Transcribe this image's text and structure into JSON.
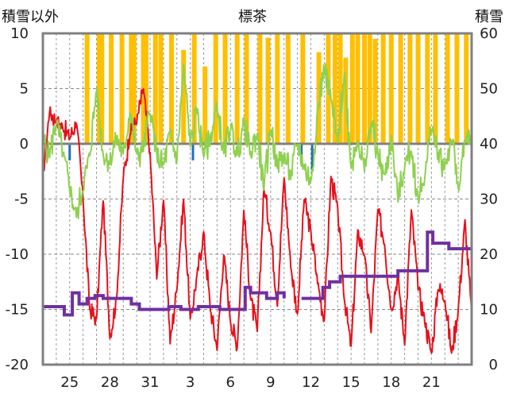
{
  "chart_data": {
    "type": "line",
    "title": "標茶",
    "left_axis_label": "積雪以外",
    "right_axis_label": "積雪",
    "ylim_left": [
      -20,
      10
    ],
    "yticks_left": [
      "10",
      "5",
      "0",
      "-5",
      "-10",
      "-15",
      "-20"
    ],
    "ylim_right": [
      0,
      60
    ],
    "yticks_right": [
      "60",
      "50",
      "40",
      "30",
      "20",
      "10",
      "0"
    ],
    "x_tick_labels": [
      "25",
      "28",
      "31",
      "3",
      "6",
      "9",
      "12",
      "15",
      "18",
      "21"
    ],
    "x_range_days": [
      23,
      55
    ],
    "grid": "horizontal dashed at 5-unit steps, vertical dashed each day",
    "colors": {
      "temperature": "#e8101a",
      "green_series": "#8fd14f",
      "precipitation": "#ffc000",
      "snow_depth": "#7030a0",
      "blue_marks": "#1f6fbf",
      "zero_line": "#808080",
      "frame": "#808080"
    },
    "precip_bars": [
      [
        26.3,
        10
      ],
      [
        27.2,
        10
      ],
      [
        27.4,
        10
      ],
      [
        28.1,
        10
      ],
      [
        28.9,
        10
      ],
      [
        29.6,
        10
      ],
      [
        29.8,
        10
      ],
      [
        30.5,
        10
      ],
      [
        30.7,
        10
      ],
      [
        31.4,
        10
      ],
      [
        31.8,
        10
      ],
      [
        32.6,
        10
      ],
      [
        33.5,
        8.5
      ],
      [
        34.3,
        10
      ],
      [
        35.1,
        7
      ],
      [
        35.9,
        10
      ],
      [
        36.6,
        10
      ],
      [
        37.5,
        10
      ],
      [
        38.2,
        10
      ],
      [
        39.2,
        10
      ],
      [
        39.8,
        9.6
      ],
      [
        40.5,
        10
      ],
      [
        41.3,
        10
      ],
      [
        42.4,
        10
      ],
      [
        43.6,
        8.3
      ],
      [
        44.3,
        10
      ],
      [
        44.8,
        10
      ],
      [
        45.2,
        10
      ],
      [
        45.6,
        7.8
      ],
      [
        46.1,
        10
      ],
      [
        46.5,
        10
      ],
      [
        47.0,
        10
      ],
      [
        47.4,
        10
      ],
      [
        47.8,
        9.5
      ],
      [
        48.4,
        10
      ],
      [
        49.0,
        10
      ],
      [
        49.7,
        10
      ],
      [
        50.4,
        10
      ],
      [
        51.0,
        10
      ],
      [
        51.7,
        10
      ],
      [
        52.3,
        10
      ],
      [
        53.2,
        10
      ],
      [
        53.9,
        10
      ],
      [
        54.6,
        10
      ]
    ],
    "blue_bars": [
      [
        25.0,
        -1.5
      ],
      [
        34.2,
        -1.5
      ],
      [
        42.3,
        -1.0
      ],
      [
        43.1,
        -2.5
      ]
    ],
    "temperature_keypoints": [
      [
        23.0,
        -3.0
      ],
      [
        23.5,
        3.0
      ],
      [
        24.0,
        2.0
      ],
      [
        24.5,
        1.5
      ],
      [
        25.0,
        0.5
      ],
      [
        25.5,
        2.0
      ],
      [
        26.0,
        -5.0
      ],
      [
        26.5,
        -15.0
      ],
      [
        27.0,
        -16.0
      ],
      [
        27.5,
        -5.0
      ],
      [
        28.0,
        -17.5
      ],
      [
        28.5,
        -14.0
      ],
      [
        29.0,
        -3.0
      ],
      [
        29.5,
        1.0
      ],
      [
        30.0,
        2.0
      ],
      [
        30.5,
        5.0
      ],
      [
        31.0,
        -1.0
      ],
      [
        31.5,
        -12.0
      ],
      [
        32.0,
        -5.0
      ],
      [
        32.5,
        -18.0
      ],
      [
        33.0,
        -13.0
      ],
      [
        33.5,
        -5.0
      ],
      [
        34.0,
        -16.0
      ],
      [
        34.5,
        -12.0
      ],
      [
        35.0,
        -8.0
      ],
      [
        35.5,
        -15.0
      ],
      [
        36.0,
        -18.5
      ],
      [
        36.5,
        -10.0
      ],
      [
        37.0,
        -16.0
      ],
      [
        37.5,
        -18.5
      ],
      [
        38.0,
        -6.0
      ],
      [
        38.5,
        -14.0
      ],
      [
        39.0,
        -17.0
      ],
      [
        39.5,
        -4.0
      ],
      [
        40.0,
        -8.0
      ],
      [
        40.5,
        -14.5
      ],
      [
        41.0,
        -3.0
      ],
      [
        41.5,
        -11.0
      ],
      [
        42.0,
        -15.5
      ],
      [
        42.5,
        -5.0
      ],
      [
        43.0,
        -8.0
      ],
      [
        43.5,
        -12.5
      ],
      [
        44.0,
        -16.0
      ],
      [
        44.5,
        -3.0
      ],
      [
        45.0,
        -6.0
      ],
      [
        45.5,
        -14.0
      ],
      [
        46.0,
        -18.5
      ],
      [
        46.5,
        -8.0
      ],
      [
        47.0,
        -10.0
      ],
      [
        47.5,
        -17.0
      ],
      [
        48.0,
        -6.0
      ],
      [
        48.5,
        -9.0
      ],
      [
        49.0,
        -15.0
      ],
      [
        49.5,
        -12.0
      ],
      [
        50.0,
        -18.0
      ],
      [
        50.5,
        -6.0
      ],
      [
        51.0,
        -13.0
      ],
      [
        51.5,
        -16.0
      ],
      [
        52.0,
        -19.0
      ],
      [
        52.5,
        -13.0
      ],
      [
        53.0,
        -14.0
      ],
      [
        53.5,
        -19.0
      ],
      [
        54.0,
        -15.0
      ],
      [
        54.5,
        -7.0
      ],
      [
        55.0,
        -15.5
      ]
    ],
    "green_keypoints": [
      [
        23.0,
        0.5
      ],
      [
        23.5,
        -1.0
      ],
      [
        24.0,
        2.0
      ],
      [
        24.5,
        -1.0
      ],
      [
        25.0,
        -4.0
      ],
      [
        25.5,
        -6.5
      ],
      [
        26.0,
        -4.0
      ],
      [
        26.5,
        -1.0
      ],
      [
        27.0,
        5.0
      ],
      [
        27.5,
        -1.0
      ],
      [
        28.0,
        -1.5
      ],
      [
        28.5,
        0.5
      ],
      [
        29.0,
        -1.0
      ],
      [
        29.5,
        3.0
      ],
      [
        30.0,
        -1.0
      ],
      [
        30.5,
        -0.5
      ],
      [
        31.0,
        3.0
      ],
      [
        31.5,
        -1.0
      ],
      [
        32.0,
        -2.0
      ],
      [
        32.5,
        1.0
      ],
      [
        33.0,
        -1.5
      ],
      [
        33.5,
        7.0
      ],
      [
        34.0,
        0.0
      ],
      [
        34.5,
        3.0
      ],
      [
        35.0,
        -1.0
      ],
      [
        35.5,
        0.5
      ],
      [
        36.0,
        3.5
      ],
      [
        36.5,
        -1.0
      ],
      [
        37.0,
        1.5
      ],
      [
        37.5,
        -1.0
      ],
      [
        38.0,
        2.0
      ],
      [
        38.5,
        -1.0
      ],
      [
        39.0,
        1.0
      ],
      [
        39.5,
        -4.0
      ],
      [
        40.0,
        1.5
      ],
      [
        40.5,
        -2.0
      ],
      [
        41.0,
        -1.0
      ],
      [
        41.5,
        -3.0
      ],
      [
        42.0,
        0.0
      ],
      [
        42.5,
        -2.0
      ],
      [
        43.0,
        -3.5
      ],
      [
        43.5,
        3.0
      ],
      [
        44.0,
        7.0
      ],
      [
        44.5,
        4.0
      ],
      [
        45.0,
        0.0
      ],
      [
        45.5,
        6.5
      ],
      [
        46.0,
        -2.0
      ],
      [
        46.5,
        0.5
      ],
      [
        47.0,
        -2.5
      ],
      [
        47.5,
        2.0
      ],
      [
        48.0,
        -1.0
      ],
      [
        48.5,
        -3.0
      ],
      [
        49.0,
        0.5
      ],
      [
        49.5,
        -5.0
      ],
      [
        50.0,
        -2.0
      ],
      [
        50.5,
        -0.5
      ],
      [
        51.0,
        -5.0
      ],
      [
        51.5,
        -3.0
      ],
      [
        52.0,
        1.5
      ],
      [
        52.5,
        -1.0
      ],
      [
        53.0,
        -2.0
      ],
      [
        53.5,
        0.5
      ],
      [
        54.0,
        -4.0
      ],
      [
        54.5,
        0.0
      ],
      [
        55.0,
        0.5
      ]
    ],
    "snow_depth_segments": [
      [
        [
          23.0,
          10.5
        ],
        [
          24.6,
          10.5
        ],
        [
          24.6,
          9
        ],
        [
          25.2,
          9
        ],
        [
          25.2,
          13
        ],
        [
          25.7,
          13
        ],
        [
          25.7,
          11
        ],
        [
          26.3,
          11
        ],
        [
          26.3,
          12
        ],
        [
          26.9,
          12
        ],
        [
          26.9,
          12.5
        ],
        [
          27.5,
          12.5
        ],
        [
          27.5,
          12
        ],
        [
          29.6,
          12
        ],
        [
          29.6,
          11
        ],
        [
          30.2,
          11
        ],
        [
          30.2,
          10
        ],
        [
          32.4,
          10
        ],
        [
          32.4,
          10.5
        ],
        [
          33.3,
          10.5
        ],
        [
          33.3,
          10
        ],
        [
          34.6,
          10
        ],
        [
          34.6,
          10.5
        ],
        [
          36.2,
          10.5
        ],
        [
          36.2,
          10
        ],
        [
          38.1,
          10
        ],
        [
          38.1,
          14
        ],
        [
          38.5,
          14
        ],
        [
          38.5,
          13
        ],
        [
          39.7,
          13
        ],
        [
          39.7,
          12
        ],
        [
          40.5,
          12
        ],
        [
          40.5,
          13
        ],
        [
          41.0,
          13
        ],
        [
          41.0,
          12
        ]
      ],
      [
        [
          42.3,
          12
        ],
        [
          43.9,
          12
        ],
        [
          43.9,
          14
        ],
        [
          44.4,
          14
        ],
        [
          44.4,
          15
        ],
        [
          45.2,
          15
        ],
        [
          45.2,
          16
        ],
        [
          49.5,
          16
        ],
        [
          49.5,
          17
        ],
        [
          51.7,
          17
        ],
        [
          51.7,
          24
        ],
        [
          52.1,
          24
        ],
        [
          52.1,
          22
        ],
        [
          53.3,
          22
        ],
        [
          53.3,
          21
        ],
        [
          55.0,
          21
        ]
      ]
    ]
  }
}
